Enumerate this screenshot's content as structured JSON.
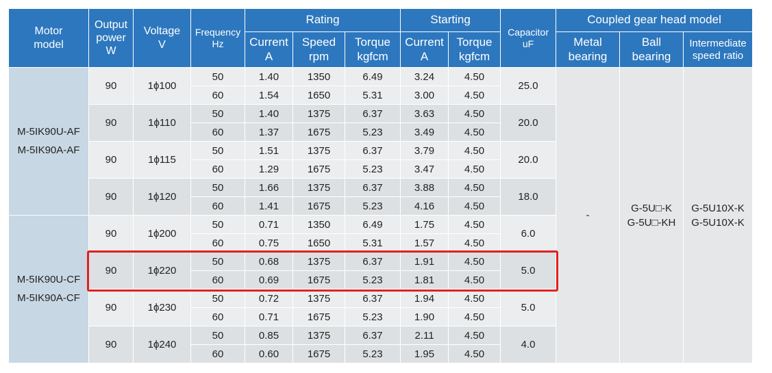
{
  "headers": {
    "motor_model": [
      "Motor",
      "model"
    ],
    "output_power": [
      "Output",
      "power",
      "W"
    ],
    "voltage": [
      "Voltage",
      "V"
    ],
    "frequency": [
      "Frequency",
      "Hz"
    ],
    "rating": "Rating",
    "starting": "Starting",
    "capacitor": [
      "Capacitor",
      "uF"
    ],
    "coupled_gear_head": "Coupled gear head model",
    "rating_current": [
      "Current",
      "A"
    ],
    "rating_speed": [
      "Speed",
      "rpm"
    ],
    "rating_torque": [
      "Torque",
      "kgfcm"
    ],
    "starting_current": [
      "Current",
      "A"
    ],
    "starting_torque": [
      "Torque",
      "kgfcm"
    ],
    "metal_bearing": [
      "Metal",
      "bearing"
    ],
    "ball_bearing": [
      "Ball",
      "bearing"
    ],
    "intermediate": [
      "Intermediate",
      "speed ratio"
    ]
  },
  "model_groups": [
    {
      "lines": [
        "M-5IK90U-AF",
        "M-5IK90A-AF"
      ]
    },
    {
      "lines": [
        "M-5IK90U-CF",
        "M-5IK90A-CF"
      ]
    }
  ],
  "voltage_groups": [
    {
      "power": "90",
      "voltage": "1ϕ100",
      "capacitor": "25.0",
      "rows": [
        {
          "freq": "50",
          "current": "1.40",
          "speed": "1350",
          "torque": "6.49",
          "s_current": "3.24",
          "s_torque": "4.50"
        },
        {
          "freq": "60",
          "current": "1.54",
          "speed": "1650",
          "torque": "5.31",
          "s_current": "3.00",
          "s_torque": "4.50"
        }
      ]
    },
    {
      "power": "90",
      "voltage": "1ϕ110",
      "capacitor": "20.0",
      "rows": [
        {
          "freq": "50",
          "current": "1.40",
          "speed": "1375",
          "torque": "6.37",
          "s_current": "3.63",
          "s_torque": "4.50"
        },
        {
          "freq": "60",
          "current": "1.37",
          "speed": "1675",
          "torque": "5.23",
          "s_current": "3.49",
          "s_torque": "4.50"
        }
      ]
    },
    {
      "power": "90",
      "voltage": "1ϕ115",
      "capacitor": "20.0",
      "rows": [
        {
          "freq": "50",
          "current": "1.51",
          "speed": "1375",
          "torque": "6.37",
          "s_current": "3.79",
          "s_torque": "4.50"
        },
        {
          "freq": "60",
          "current": "1.29",
          "speed": "1675",
          "torque": "5.23",
          "s_current": "3.47",
          "s_torque": "4.50"
        }
      ]
    },
    {
      "power": "90",
      "voltage": "1ϕ120",
      "capacitor": "18.0",
      "rows": [
        {
          "freq": "50",
          "current": "1.66",
          "speed": "1375",
          "torque": "6.37",
          "s_current": "3.88",
          "s_torque": "4.50"
        },
        {
          "freq": "60",
          "current": "1.41",
          "speed": "1675",
          "torque": "5.23",
          "s_current": "4.16",
          "s_torque": "4.50"
        }
      ]
    },
    {
      "power": "90",
      "voltage": "1ϕ200",
      "capacitor": "6.0",
      "rows": [
        {
          "freq": "50",
          "current": "0.71",
          "speed": "1350",
          "torque": "6.49",
          "s_current": "1.75",
          "s_torque": "4.50"
        },
        {
          "freq": "60",
          "current": "0.75",
          "speed": "1650",
          "torque": "5.31",
          "s_current": "1.57",
          "s_torque": "4.50"
        }
      ]
    },
    {
      "power": "90",
      "voltage": "1ϕ220",
      "capacitor": "5.0",
      "rows": [
        {
          "freq": "50",
          "current": "0.68",
          "speed": "1375",
          "torque": "6.37",
          "s_current": "1.91",
          "s_torque": "4.50"
        },
        {
          "freq": "60",
          "current": "0.69",
          "speed": "1675",
          "torque": "5.23",
          "s_current": "1.81",
          "s_torque": "4.50"
        }
      ]
    },
    {
      "power": "90",
      "voltage": "1ϕ230",
      "capacitor": "5.0",
      "rows": [
        {
          "freq": "50",
          "current": "0.72",
          "speed": "1375",
          "torque": "6.37",
          "s_current": "1.94",
          "s_torque": "4.50"
        },
        {
          "freq": "60",
          "current": "0.71",
          "speed": "1675",
          "torque": "5.23",
          "s_current": "1.90",
          "s_torque": "4.50"
        }
      ]
    },
    {
      "power": "90",
      "voltage": "1ϕ240",
      "capacitor": "4.0",
      "rows": [
        {
          "freq": "50",
          "current": "0.85",
          "speed": "1375",
          "torque": "6.37",
          "s_current": "2.11",
          "s_torque": "4.50"
        },
        {
          "freq": "60",
          "current": "0.60",
          "speed": "1675",
          "torque": "5.23",
          "s_current": "1.95",
          "s_torque": "4.50"
        }
      ]
    }
  ],
  "gear_head": {
    "metal_bearing": "-",
    "ball_bearing": [
      "G-5U□-K",
      "G-5U□-KH"
    ],
    "intermediate": [
      "G-5U10X-K",
      "G-5U10X-K"
    ]
  },
  "highlight": {
    "voltage_group_index": 5,
    "color": "#e02020"
  },
  "colors": {
    "header": "#2d77be",
    "model_cell": "#c7d8e4",
    "row_light": "#ebedee",
    "row_dark": "#dde0e2",
    "gear_cell": "#e6e7e9"
  }
}
